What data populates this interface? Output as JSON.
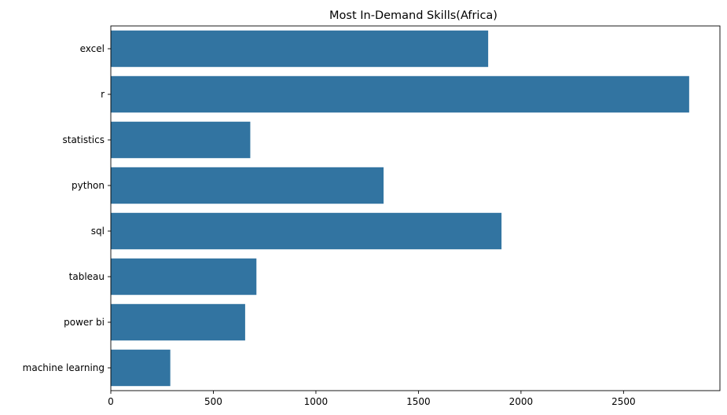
{
  "chart_data": {
    "type": "bar",
    "orientation": "horizontal",
    "title": "Most In-Demand Skills(Africa)",
    "xlabel": "",
    "ylabel": "",
    "categories": [
      "excel",
      "r",
      "statistics",
      "python",
      "sql",
      "tableau",
      "power bi",
      "machine learning"
    ],
    "values": [
      1840,
      2820,
      680,
      1330,
      1905,
      710,
      655,
      290
    ],
    "xlim": [
      0,
      2970
    ],
    "xticks": [
      0,
      500,
      1000,
      1500,
      2000,
      2500
    ],
    "xtick_labels": [
      "0",
      "500",
      "1000",
      "1500",
      "2000",
      "2500"
    ],
    "bar_color": "#3274a1",
    "grid": false,
    "legend": "none"
  }
}
